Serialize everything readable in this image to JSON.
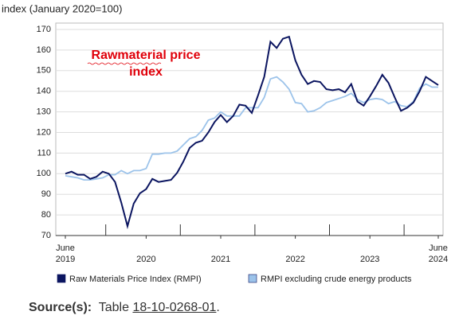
{
  "chart_data": {
    "type": "line",
    "y_label": "index (January 2020=100)",
    "annotation": [
      "Rawmaterial price",
      "index"
    ],
    "categories": [
      "June 2019",
      null,
      null,
      null,
      null,
      null,
      null,
      null,
      null,
      null,
      null,
      null,
      null,
      "2020",
      null,
      null,
      null,
      null,
      null,
      null,
      null,
      null,
      null,
      null,
      null,
      "2021",
      null,
      null,
      null,
      null,
      null,
      null,
      null,
      null,
      null,
      null,
      null,
      "2022",
      null,
      null,
      null,
      null,
      null,
      null,
      null,
      null,
      null,
      null,
      null,
      "2023",
      null,
      null,
      null,
      null,
      null,
      null,
      null,
      null,
      null,
      null,
      "June 2024"
    ],
    "series": [
      {
        "name": "Raw Materials Price Index (RMPI)",
        "color": "#0b1560",
        "values": [
          100,
          101,
          99.5,
          99.5,
          97.5,
          98.5,
          101,
          100,
          96,
          86,
          74.5,
          85.5,
          90.5,
          92.5,
          97.5,
          96,
          96.5,
          97,
          100.5,
          106,
          112.5,
          115,
          116,
          120,
          125,
          128.5,
          125,
          128,
          133.5,
          133,
          129.5,
          138,
          147,
          164,
          161,
          165.5,
          166.5,
          155,
          148,
          143.5,
          145,
          144.5,
          141,
          140.5,
          141,
          139.5,
          143.5,
          135,
          133,
          137.5,
          142.5,
          148,
          144,
          137,
          130.5,
          132,
          134.5,
          140,
          147,
          145,
          143
        ]
      },
      {
        "name": "RMPI excluding crude energy products",
        "color": "#9cc3ea",
        "values": [
          99,
          98.5,
          98,
          97,
          97,
          97.5,
          98,
          99.5,
          99.5,
          101.5,
          100,
          101.5,
          101.5,
          102.5,
          109.5,
          109.5,
          110,
          110,
          111,
          114,
          117,
          118,
          121,
          126,
          127,
          130,
          128,
          128,
          128,
          132,
          132,
          132,
          137,
          146,
          147,
          144.5,
          141,
          134.5,
          134,
          130,
          130.5,
          132,
          134.5,
          135.5,
          136.5,
          137.5,
          139,
          136,
          134.5,
          136,
          136.5,
          136,
          134,
          135,
          133,
          132.5,
          135,
          141.5,
          143.5,
          142,
          142
        ]
      }
    ],
    "ylim": [
      70,
      170
    ],
    "yticks": [
      70,
      80,
      90,
      100,
      110,
      120,
      130,
      140,
      150,
      160,
      170
    ],
    "grid": true
  },
  "source": {
    "label": "Source(s):",
    "text": "Table",
    "link": "18-10-0268-01",
    "end": "."
  }
}
